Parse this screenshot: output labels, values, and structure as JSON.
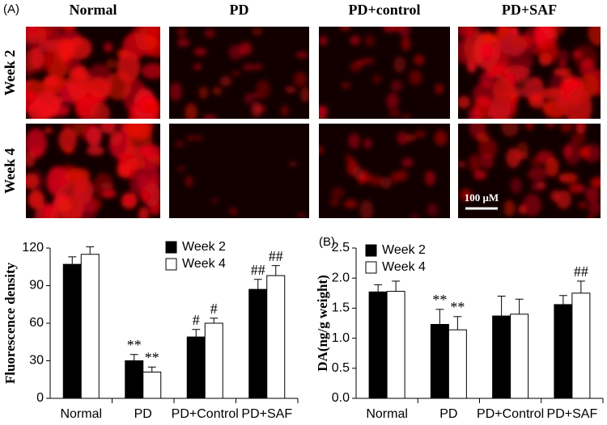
{
  "figure": {
    "panel_label": "(A)",
    "columns": [
      "Normal",
      "PD",
      "PD+control",
      "PD+SAF"
    ],
    "rows": [
      "Week 2",
      "Week 4"
    ],
    "scale_bar": "100 μM"
  },
  "chart_data": [
    {
      "type": "bar",
      "y_label": "Fluorescence density",
      "categories": [
        "Normal",
        "PD",
        "PD+Control",
        "PD+SAF"
      ],
      "series": [
        {
          "name": "Week 2",
          "color": "#000000",
          "values": [
            107,
            30,
            49,
            87
          ],
          "errors": [
            6,
            5,
            6,
            8
          ],
          "annotations": [
            null,
            "**",
            "#",
            "##"
          ]
        },
        {
          "name": "Week 4",
          "color": "#ffffff",
          "values": [
            115,
            21,
            60,
            98
          ],
          "errors": [
            6,
            4,
            4,
            8
          ],
          "annotations": [
            null,
            "**",
            "#",
            "##"
          ]
        }
      ],
      "ylim": [
        0,
        120
      ],
      "yticks": [
        0,
        30,
        60,
        90,
        120
      ]
    },
    {
      "type": "bar",
      "panel_label": "(B)",
      "y_label": "DA(ng/g weight)",
      "categories": [
        "Normal",
        "PD",
        "PD+Control",
        "PD+SAF"
      ],
      "series": [
        {
          "name": "Week 2",
          "color": "#000000",
          "values": [
            1.77,
            1.23,
            1.37,
            1.56
          ],
          "errors": [
            0.12,
            0.25,
            0.33,
            0.15
          ],
          "annotations": [
            null,
            "**",
            null,
            null
          ]
        },
        {
          "name": "Week 4",
          "color": "#ffffff",
          "values": [
            1.78,
            1.14,
            1.4,
            1.75
          ],
          "errors": [
            0.17,
            0.22,
            0.25,
            0.2
          ],
          "annotations": [
            null,
            "**",
            null,
            "##"
          ]
        }
      ],
      "ylim": [
        0,
        2.5
      ],
      "yticks": [
        {
          "value": 0,
          "label": "0.0"
        },
        0.5,
        {
          "value": 1,
          "label": "1.0"
        },
        1.5,
        {
          "value": 2,
          "label": "2.0"
        },
        2.5
      ]
    }
  ]
}
